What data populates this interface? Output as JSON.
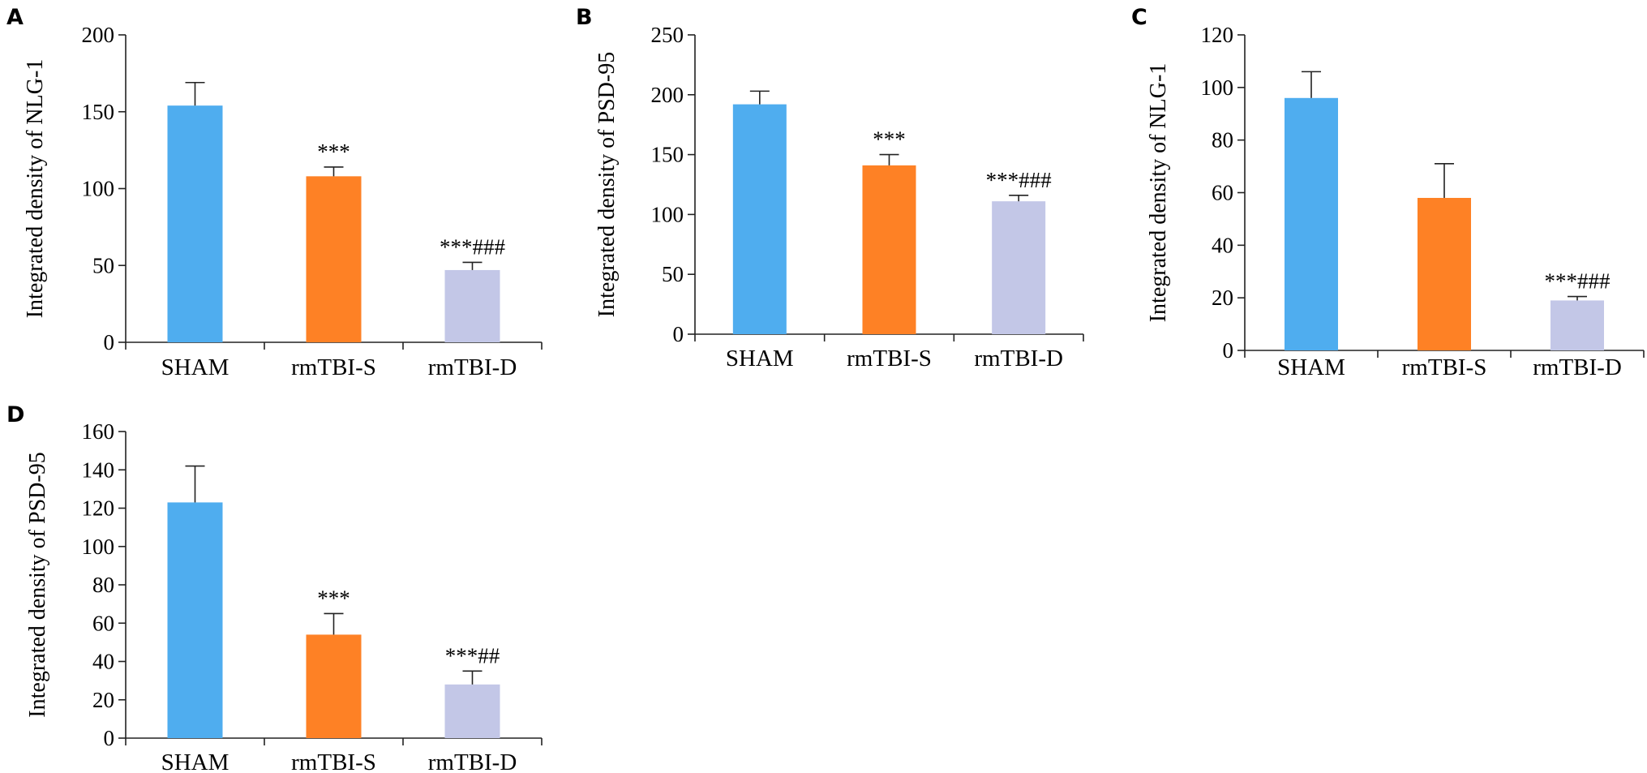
{
  "chart_data": [
    {
      "panel": "A",
      "type": "bar",
      "ylabel": "Integrated density of NLG-1",
      "ylim": [
        0,
        200
      ],
      "yticks": [
        0,
        50,
        100,
        150,
        200
      ],
      "categories": [
        "SHAM",
        "rmTBI-S",
        "rmTBI-D"
      ],
      "values": [
        154,
        108,
        47
      ],
      "errors": [
        15,
        6,
        5
      ],
      "annotations": [
        "",
        "***",
        "***###"
      ],
      "colors": [
        "#4fadef",
        "#fe8125",
        "#c3c7e7"
      ]
    },
    {
      "panel": "B",
      "type": "bar",
      "ylabel": "Integrated density of PSD-95",
      "ylim": [
        0,
        250
      ],
      "yticks": [
        0,
        50,
        100,
        150,
        200,
        250
      ],
      "categories": [
        "SHAM",
        "rmTBI-S",
        "rmTBI-D"
      ],
      "values": [
        192,
        141,
        111
      ],
      "errors": [
        11,
        9,
        5
      ],
      "annotations": [
        "",
        "***",
        "***###"
      ],
      "colors": [
        "#4fadef",
        "#fe8125",
        "#c3c7e7"
      ]
    },
    {
      "panel": "C",
      "type": "bar",
      "ylabel": "Integrated density of NLG-1",
      "ylim": [
        0,
        120
      ],
      "yticks": [
        0,
        20,
        40,
        60,
        80,
        100,
        120
      ],
      "categories": [
        "SHAM",
        "rmTBI-S",
        "rmTBI-D"
      ],
      "values": [
        96,
        58,
        19
      ],
      "errors": [
        10,
        13,
        1.5
      ],
      "annotations": [
        "",
        "",
        "***###"
      ],
      "colors": [
        "#4fadef",
        "#fe8125",
        "#c3c7e7"
      ]
    },
    {
      "panel": "D",
      "type": "bar",
      "ylabel": "Integrated density of PSD-95",
      "ylim": [
        0,
        160
      ],
      "yticks": [
        0,
        20,
        40,
        60,
        80,
        100,
        120,
        140,
        160
      ],
      "categories": [
        "SHAM",
        "rmTBI-S",
        "rmTBI-D"
      ],
      "values": [
        123,
        54,
        28
      ],
      "errors": [
        19,
        11,
        7
      ],
      "annotations": [
        "",
        "***",
        "***##"
      ],
      "colors": [
        "#4fadef",
        "#fe8125",
        "#c3c7e7"
      ]
    }
  ]
}
